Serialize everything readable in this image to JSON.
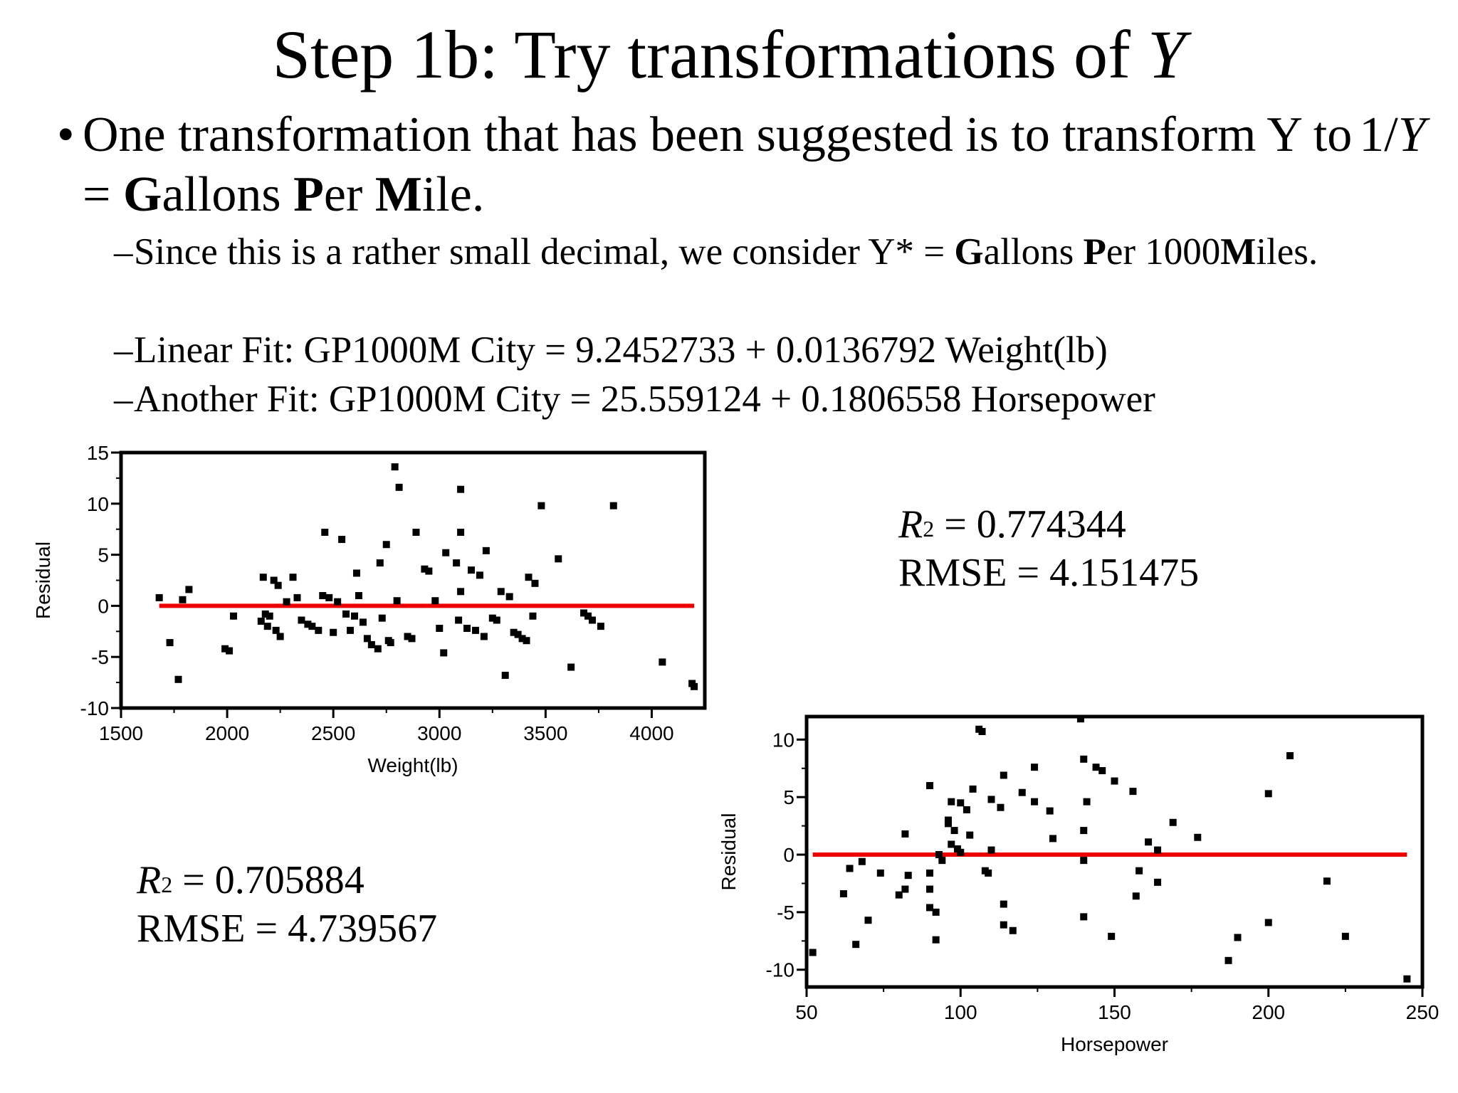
{
  "slide": {
    "title_prefix": "Step 1b: Try transformations of ",
    "title_var": "Y",
    "bullet_text_1": "One transformation that has been suggested is to transform Y to",
    "bullet_frac_num": "1/",
    "bullet_frac_var": "Y",
    "bullet_eq": " = ",
    "gpm": [
      {
        "b": "G",
        "r": "allons "
      },
      {
        "b": "P",
        "r": "er "
      },
      {
        "b": "M",
        "r": "ile."
      }
    ],
    "sub1_prefix": "Since this is a rather small decimal, we consider Y* = ",
    "sub1_b1": "G",
    "sub1_r1": "allons ",
    "sub1_b2": "P",
    "sub1_r2": "er 1000",
    "sub1_b3": "M",
    "sub1_r3": "iles.",
    "sub2": "Linear Fit:  GP1000M City = 9.2452733 + 0.0136792 Weight(lb)",
    "sub3": "Another Fit: GP1000M City = 25.559124 + 0.1806558 Horsepower",
    "dash": "–",
    "bullet_char": "•"
  },
  "stats_horsepower": {
    "r2_symbol": "R",
    "r2_exp": "2",
    "r2_value": " = 0.774344",
    "rmse": "RMSE = 4.151475"
  },
  "stats_weight": {
    "r2_symbol": "R",
    "r2_exp": "2",
    "r2_value": " = 0.705884",
    "rmse": "RMSE = 4.739567"
  },
  "colors": {
    "fit_line": "#ee0000",
    "points": "#000000"
  },
  "chart_data": [
    {
      "type": "scatter",
      "title": "",
      "xlabel": "Weight(lb)",
      "ylabel": "Residual",
      "xlim": [
        1500,
        4250
      ],
      "ylim": [
        -10,
        15
      ],
      "x_ticks": [
        1500,
        2000,
        2500,
        3000,
        3500,
        4000
      ],
      "y_ticks": [
        -10,
        -5,
        0,
        5,
        10,
        15
      ],
      "fit_line": {
        "y": 0,
        "x_range": [
          1680,
          4200
        ]
      },
      "points": [
        [
          1680,
          0.8
        ],
        [
          1730,
          -3.6
        ],
        [
          1770,
          -7.2
        ],
        [
          1790,
          0.6
        ],
        [
          1820,
          1.6
        ],
        [
          1990,
          -4.2
        ],
        [
          2010,
          -4.4
        ],
        [
          2030,
          -1
        ],
        [
          2160,
          -1.5
        ],
        [
          2170,
          2.8
        ],
        [
          2180,
          -0.8
        ],
        [
          2190,
          -2
        ],
        [
          2200,
          -1
        ],
        [
          2220,
          2.5
        ],
        [
          2230,
          -2.4
        ],
        [
          2240,
          2
        ],
        [
          2250,
          -3
        ],
        [
          2280,
          0.4
        ],
        [
          2310,
          2.8
        ],
        [
          2330,
          0.8
        ],
        [
          2350,
          -1.4
        ],
        [
          2380,
          -1.8
        ],
        [
          2400,
          -2
        ],
        [
          2430,
          -2.4
        ],
        [
          2450,
          1
        ],
        [
          2460,
          7.2
        ],
        [
          2480,
          0.8
        ],
        [
          2500,
          -2.6
        ],
        [
          2520,
          0.4
        ],
        [
          2540,
          6.5
        ],
        [
          2560,
          -0.8
        ],
        [
          2580,
          -2.4
        ],
        [
          2600,
          -1
        ],
        [
          2610,
          3.2
        ],
        [
          2620,
          1
        ],
        [
          2640,
          -1.6
        ],
        [
          2660,
          -3.2
        ],
        [
          2680,
          -3.8
        ],
        [
          2710,
          -4.2
        ],
        [
          2720,
          4.2
        ],
        [
          2730,
          -1.2
        ],
        [
          2750,
          6
        ],
        [
          2760,
          -3.4
        ],
        [
          2770,
          -3.6
        ],
        [
          2790,
          13.6
        ],
        [
          2800,
          0.5
        ],
        [
          2810,
          11.6
        ],
        [
          2850,
          -3
        ],
        [
          2870,
          -3.2
        ],
        [
          2890,
          7.2
        ],
        [
          2930,
          3.6
        ],
        [
          2950,
          3.4
        ],
        [
          2980,
          0.5
        ],
        [
          3000,
          -2.2
        ],
        [
          3020,
          -4.6
        ],
        [
          3030,
          5.2
        ],
        [
          3080,
          4.2
        ],
        [
          3090,
          -1.4
        ],
        [
          3100,
          11.4
        ],
        [
          3100,
          7.2
        ],
        [
          3100,
          1.4
        ],
        [
          3130,
          -2.2
        ],
        [
          3150,
          3.5
        ],
        [
          3170,
          -2.4
        ],
        [
          3190,
          3
        ],
        [
          3210,
          -3
        ],
        [
          3220,
          5.4
        ],
        [
          3250,
          -1.2
        ],
        [
          3270,
          -1.4
        ],
        [
          3290,
          1.4
        ],
        [
          3310,
          -6.8
        ],
        [
          3330,
          0.9
        ],
        [
          3350,
          -2.6
        ],
        [
          3370,
          -2.8
        ],
        [
          3390,
          -3.2
        ],
        [
          3410,
          -3.4
        ],
        [
          3420,
          2.8
        ],
        [
          3440,
          -1
        ],
        [
          3450,
          2.2
        ],
        [
          3480,
          9.8
        ],
        [
          3560,
          4.6
        ],
        [
          3620,
          -6
        ],
        [
          3680,
          -0.7
        ],
        [
          3700,
          -1
        ],
        [
          3720,
          -1.4
        ],
        [
          3760,
          -2
        ],
        [
          3820,
          9.8
        ],
        [
          4050,
          -5.5
        ],
        [
          4190,
          -7.6
        ],
        [
          4200,
          -7.9
        ]
      ]
    },
    {
      "type": "scatter",
      "title": "",
      "xlabel": "Horsepower",
      "ylabel": "Residual",
      "xlim": [
        50,
        250
      ],
      "ylim": [
        -11.5,
        12
      ],
      "x_ticks": [
        50,
        100,
        150,
        200,
        250
      ],
      "y_ticks": [
        -10,
        -5,
        0,
        5,
        10
      ],
      "fit_line": {
        "y": 0,
        "x_range": [
          52,
          245
        ]
      },
      "points": [
        [
          52,
          -8.5
        ],
        [
          62,
          -3.4
        ],
        [
          64,
          -1.2
        ],
        [
          66,
          -7.8
        ],
        [
          68,
          -0.6
        ],
        [
          70,
          -5.7
        ],
        [
          74,
          -1.6
        ],
        [
          80,
          -3.5
        ],
        [
          82,
          1.8
        ],
        [
          82,
          -3
        ],
        [
          83,
          -1.8
        ],
        [
          90,
          -1.6
        ],
        [
          90,
          -3
        ],
        [
          90,
          6
        ],
        [
          90,
          -4.6
        ],
        [
          92,
          -5
        ],
        [
          92,
          -7.4
        ],
        [
          93,
          0
        ],
        [
          94,
          -0.5
        ],
        [
          96,
          3
        ],
        [
          96,
          2.7
        ],
        [
          97,
          0.9
        ],
        [
          97,
          4.6
        ],
        [
          98,
          2.1
        ],
        [
          99,
          0.5
        ],
        [
          100,
          0.2
        ],
        [
          100,
          4.5
        ],
        [
          102,
          3.9
        ],
        [
          103,
          1.7
        ],
        [
          104,
          5.7
        ],
        [
          106,
          10.9
        ],
        [
          107,
          10.7
        ],
        [
          108,
          -1.4
        ],
        [
          109,
          -1.6
        ],
        [
          110,
          4.8
        ],
        [
          110,
          0.4
        ],
        [
          113,
          4.1
        ],
        [
          114,
          6.9
        ],
        [
          114,
          -4.3
        ],
        [
          114,
          -6.1
        ],
        [
          117,
          -6.6
        ],
        [
          120,
          5.4
        ],
        [
          124,
          4.6
        ],
        [
          124,
          7.6
        ],
        [
          129,
          3.8
        ],
        [
          130,
          1.4
        ],
        [
          139,
          11.8
        ],
        [
          140,
          8.3
        ],
        [
          140,
          -0.5
        ],
        [
          140,
          2.1
        ],
        [
          140,
          -5.4
        ],
        [
          141,
          4.6
        ],
        [
          144,
          7.6
        ],
        [
          146,
          7.3
        ],
        [
          149,
          -7.1
        ],
        [
          150,
          6.4
        ],
        [
          156,
          5.5
        ],
        [
          157,
          -3.6
        ],
        [
          158,
          -1.4
        ],
        [
          161,
          1.1
        ],
        [
          164,
          0.4
        ],
        [
          164,
          -2.4
        ],
        [
          169,
          2.8
        ],
        [
          177,
          1.5
        ],
        [
          187,
          -9.2
        ],
        [
          190,
          -7.2
        ],
        [
          200,
          -5.9
        ],
        [
          200,
          5.3
        ],
        [
          207,
          8.6
        ],
        [
          219,
          -2.3
        ],
        [
          225,
          -7.1
        ],
        [
          245,
          -10.8
        ]
      ]
    }
  ]
}
